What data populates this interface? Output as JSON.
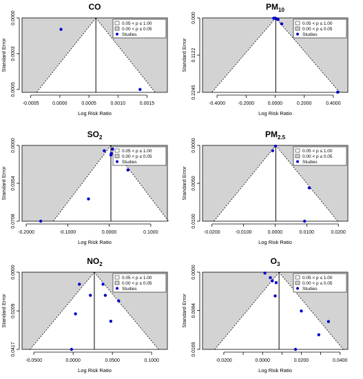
{
  "figure": {
    "legend": {
      "insig_label": "0.05 < p ≤ 1.00",
      "sig_label": "0.00 < p ≤ 0.05",
      "studies_label": "Studies"
    },
    "colors": {
      "shade": "#d3d3d3",
      "funnel_fill": "#ffffff",
      "point": "#0000cc",
      "axis": "#000000"
    }
  },
  "chart_data": [
    {
      "type": "scatter",
      "title": "CO",
      "xlabel": "Log Risk Ratio",
      "ylabel": "Standard Error",
      "xlim": [
        -0.00065,
        0.00185
      ],
      "ylim": [
        0,
        0.00052
      ],
      "y_reversed": true,
      "xticks": [
        -0.0005,
        0.0,
        0.0005,
        0.001,
        0.0015
      ],
      "xtick_labels": [
        "-0.0005",
        "0.0000",
        "0.0005",
        "0.0010",
        "0.0015"
      ],
      "yticks": [
        0,
        0.00025,
        0.0005
      ],
      "ytick_labels": [
        "0.0000",
        "0.0003",
        "0.0005"
      ],
      "summary_estimate": 0.00062,
      "studies": [
        [
          2e-05,
          8e-05
        ],
        [
          0.00138,
          0.0005
        ]
      ]
    },
    {
      "type": "scatter",
      "title": "PM10",
      "xlabel": "Log Risk Ratio",
      "ylabel": "Standard Error",
      "xlim": [
        -0.5,
        0.5
      ],
      "ylim": [
        0,
        0.2245
      ],
      "y_reversed": true,
      "xticks": [
        -0.4,
        -0.2,
        0.0,
        0.2,
        0.4
      ],
      "xtick_labels": [
        "-0.4000",
        "-0.2000",
        "0.0000",
        "0.2000",
        "0.4000"
      ],
      "yticks": [
        0,
        0.1122,
        0.2245
      ],
      "ytick_labels": [
        "0.000",
        "0.1122",
        "0.2245"
      ],
      "summary_estimate": 0.004,
      "studies": [
        [
          -0.01,
          0.001
        ],
        [
          0.0,
          0.001
        ],
        [
          0.005,
          0.002
        ],
        [
          0.01,
          0.003
        ],
        [
          0.02,
          0.005
        ],
        [
          0.045,
          0.018
        ],
        [
          0.43,
          0.224
        ]
      ]
    },
    {
      "type": "scatter",
      "title": "SO2",
      "xlabel": "Log Risk Ratio",
      "ylabel": "Standard Error",
      "xlim": [
        -0.21,
        0.14
      ],
      "ylim": [
        0,
        0.0708
      ],
      "y_reversed": true,
      "xticks": [
        -0.2,
        -0.1,
        0.0,
        0.1
      ],
      "xtick_labels": [
        "-0.2000",
        "-0.1000",
        "0.0000",
        "0.1000"
      ],
      "yticks": [
        0,
        0.0354,
        0.0708
      ],
      "ytick_labels": [
        "0.0000",
        "0.0354",
        "0.0708"
      ],
      "summary_estimate": 0.004,
      "studies": [
        [
          -0.012,
          0.005
        ],
        [
          0.008,
          0.0035
        ],
        [
          0.005,
          0.0075
        ],
        [
          0.004,
          0.009
        ],
        [
          0.045,
          0.023
        ],
        [
          -0.05,
          0.05
        ],
        [
          -0.165,
          0.0708
        ]
      ]
    },
    {
      "type": "scatter",
      "title": "PM2.5",
      "xlabel": "Log Risk Ratio",
      "ylabel": "Standard Error",
      "xlim": [
        -0.023,
        0.023
      ],
      "ylim": [
        0,
        0.01
      ],
      "y_reversed": true,
      "xticks": [
        -0.02,
        -0.01,
        0.0,
        0.01,
        0.02
      ],
      "xtick_labels": [
        "-0.0200",
        "-0.0100",
        "0.0000",
        "0.0100",
        "0.0200"
      ],
      "yticks": [
        0,
        0.005,
        0.01
      ],
      "ytick_labels": [
        "0.0000",
        "0.0050",
        "0.0100"
      ],
      "summary_estimate": 0.0002,
      "studies": [
        [
          0.0001,
          0.0001
        ],
        [
          -0.0008,
          0.0007
        ],
        [
          0.0108,
          0.0056
        ],
        [
          0.0093,
          0.01
        ]
      ]
    },
    {
      "type": "scatter",
      "title": "NO2",
      "xlabel": "Log Risk Ratio",
      "ylabel": "Standard Error",
      "xlim": [
        -0.065,
        0.12
      ],
      "ylim": [
        0,
        0.0417
      ],
      "y_reversed": true,
      "xticks": [
        -0.05,
        0.0,
        0.05,
        0.1
      ],
      "xtick_labels": [
        "-0.0500",
        "0.0000",
        "0.0500",
        "0.1000"
      ],
      "yticks": [
        0,
        0.0209,
        0.0417
      ],
      "ytick_labels": [
        "0.0000",
        "0.0209",
        "0.0417"
      ],
      "summary_estimate": 0.027,
      "studies": [
        [
          0.008,
          0.0065
        ],
        [
          0.038,
          0.0065
        ],
        [
          0.022,
          0.0125
        ],
        [
          0.041,
          0.0125
        ],
        [
          0.058,
          0.0155
        ],
        [
          0.003,
          0.0225
        ],
        [
          0.048,
          0.0265
        ],
        [
          -0.002,
          0.0417
        ]
      ]
    },
    {
      "type": "scatter",
      "title": "O3",
      "xlabel": "Log Risk Ratio",
      "ylabel": "Standard Error",
      "xlim": [
        -0.031,
        0.044
      ],
      "ylim": [
        0,
        0.0169
      ],
      "y_reversed": true,
      "xticks": [
        -0.02,
        -0.01,
        0.0,
        0.01,
        0.02,
        0.03,
        0.04
      ],
      "xtick_labels": [
        "-0.0200",
        "",
        "0.0000",
        "",
        "0.0200",
        "",
        "0.0400"
      ],
      "yticks": [
        0,
        0.0084,
        0.0169
      ],
      "ytick_labels": [
        "0.0000",
        "0.0084",
        "0.0169"
      ],
      "summary_estimate": 0.0085,
      "studies": [
        [
          0.0012,
          0.0002
        ],
        [
          0.004,
          0.0012
        ],
        [
          0.005,
          0.0019
        ],
        [
          0.007,
          0.0023
        ],
        [
          0.0065,
          0.0052
        ],
        [
          0.02,
          0.0085
        ],
        [
          0.034,
          0.0108
        ],
        [
          0.029,
          0.0137
        ],
        [
          0.017,
          0.0169
        ]
      ]
    }
  ]
}
